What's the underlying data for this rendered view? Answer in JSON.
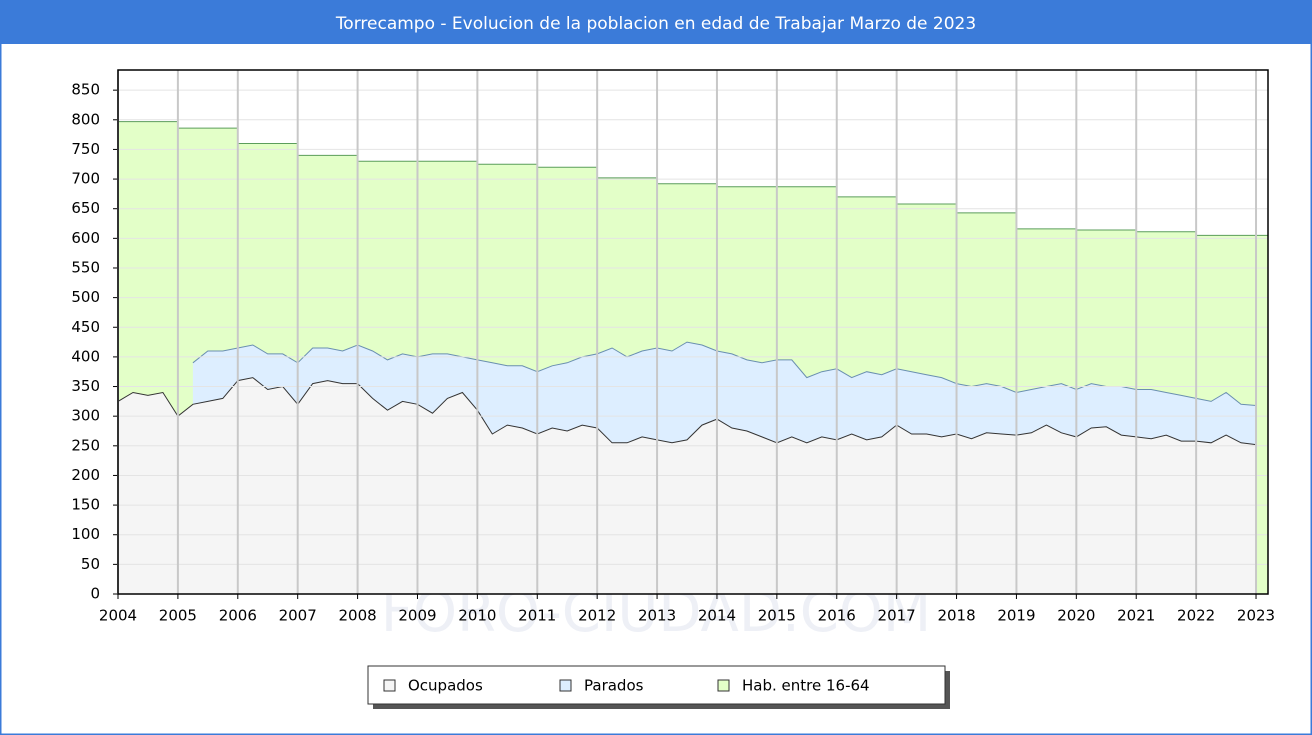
{
  "chart_data": {
    "type": "area",
    "title": "Torrecampo - Evolucion de la poblacion en edad de Trabajar Marzo de 2023",
    "watermark": "FORO-CIUDAD.COM",
    "x": [
      2004,
      2004.25,
      2004.5,
      2004.75,
      2005,
      2005.25,
      2005.5,
      2005.75,
      2006,
      2006.25,
      2006.5,
      2006.75,
      2007,
      2007.25,
      2007.5,
      2007.75,
      2008,
      2008.25,
      2008.5,
      2008.75,
      2009,
      2009.25,
      2009.5,
      2009.75,
      2010,
      2010.25,
      2010.5,
      2010.75,
      2011,
      2011.25,
      2011.5,
      2011.75,
      2012,
      2012.25,
      2012.5,
      2012.75,
      2013,
      2013.25,
      2013.5,
      2013.75,
      2014,
      2014.25,
      2014.5,
      2014.75,
      2015,
      2015.25,
      2015.5,
      2015.75,
      2016,
      2016.25,
      2016.5,
      2016.75,
      2017,
      2017.25,
      2017.5,
      2017.75,
      2018,
      2018.25,
      2018.5,
      2018.75,
      2019,
      2019.25,
      2019.5,
      2019.75,
      2020,
      2020.25,
      2020.5,
      2020.75,
      2021,
      2021.25,
      2021.5,
      2021.75,
      2022,
      2022.25,
      2022.5,
      2022.75,
      2023
    ],
    "series": [
      {
        "name": "Hab. entre 16-64",
        "color": "#e3ffc8",
        "line_color": "#5b9d5b",
        "step": true,
        "x": [
          2004,
          2005,
          2006,
          2007,
          2008,
          2009,
          2010,
          2011,
          2012,
          2013,
          2014,
          2015,
          2016,
          2017,
          2018,
          2019,
          2020,
          2021,
          2022
        ],
        "values": [
          797,
          786,
          760,
          740,
          730,
          730,
          725,
          720,
          702,
          692,
          687,
          687,
          670,
          658,
          643,
          616,
          614,
          611,
          605
        ]
      },
      {
        "name": "Parados",
        "color": "#ddeeff",
        "line_color": "#6a8fb0",
        "values": [
          null,
          null,
          null,
          null,
          null,
          390,
          410,
          410,
          415,
          420,
          405,
          405,
          390,
          415,
          415,
          410,
          420,
          410,
          395,
          405,
          400,
          405,
          405,
          400,
          395,
          390,
          385,
          385,
          375,
          385,
          390,
          400,
          405,
          415,
          400,
          410,
          415,
          410,
          425,
          420,
          410,
          405,
          395,
          390,
          395,
          395,
          365,
          375,
          380,
          365,
          375,
          370,
          380,
          375,
          370,
          365,
          355,
          350,
          355,
          350,
          340,
          345,
          350,
          355,
          345,
          355,
          350,
          350,
          345,
          345,
          340,
          335,
          330,
          325,
          340,
          320,
          318
        ]
      },
      {
        "name": "Ocupados",
        "color": "#f5f5f5",
        "line_color": "#333333",
        "values": [
          325,
          340,
          335,
          340,
          300,
          320,
          325,
          330,
          360,
          365,
          345,
          350,
          320,
          355,
          360,
          355,
          355,
          330,
          310,
          325,
          320,
          305,
          330,
          340,
          310,
          270,
          285,
          280,
          270,
          280,
          275,
          285,
          280,
          255,
          255,
          265,
          260,
          255,
          260,
          285,
          295,
          280,
          275,
          265,
          255,
          265,
          255,
          265,
          260,
          270,
          260,
          265,
          285,
          270,
          270,
          265,
          270,
          262,
          272,
          270,
          268,
          272,
          285,
          272,
          265,
          280,
          282,
          268,
          265,
          262,
          268,
          258,
          258,
          255,
          268,
          255,
          252
        ]
      }
    ],
    "legend_order": [
      2,
      1,
      0
    ],
    "xlim": [
      2004,
      2023.2
    ],
    "ylim": [
      0,
      884
    ],
    "xticks": [
      2004,
      2005,
      2006,
      2007,
      2008,
      2009,
      2010,
      2011,
      2012,
      2013,
      2014,
      2015,
      2016,
      2017,
      2018,
      2019,
      2020,
      2021,
      2022,
      2023
    ],
    "yticks": [
      0,
      50,
      100,
      150,
      200,
      250,
      300,
      350,
      400,
      450,
      500,
      550,
      600,
      650,
      700,
      750,
      800,
      850
    ],
    "grid": true
  }
}
